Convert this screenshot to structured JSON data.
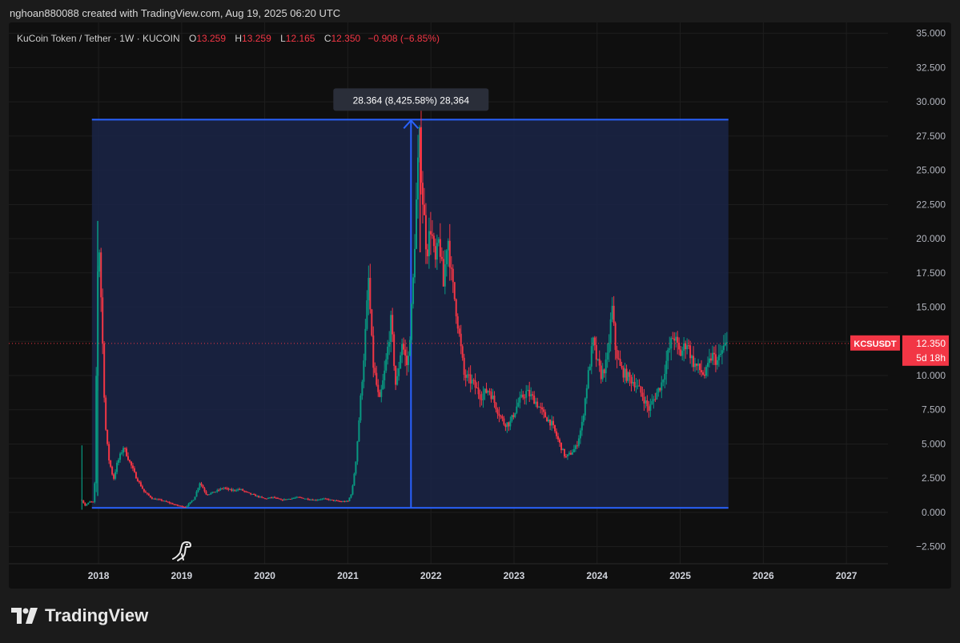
{
  "header": {
    "caption": "nghoan880088 created with TradingView.com, Aug 19, 2025 06:20 UTC"
  },
  "legend": {
    "symbol": "KuCoin Token / Tether · 1W · KUCOIN",
    "open_label": "O",
    "open": "13.259",
    "high_label": "H",
    "high": "13.259",
    "low_label": "L",
    "low": "12.165",
    "close_label": "C",
    "close": "12.350",
    "change": "−0.908 (−6.85%)"
  },
  "measure": {
    "label": "28.364 (8,425.58%) 28,364"
  },
  "price_tag": {
    "symbol": "KCSUSDT",
    "price": "12.350",
    "countdown": "5d 18h"
  },
  "brand": {
    "name": "TradingView",
    "logo_icon": "tradingview-logo-icon",
    "dino_icon": "dino-icon"
  },
  "colors": {
    "up": "#089981",
    "down": "#f23645",
    "measure": "#2962ff",
    "measure_fill": "#1a2447"
  },
  "chart_data": {
    "type": "candlestick",
    "symbol": "KCSUSDT",
    "interval": "1W",
    "ylim": [
      -3.75,
      35.8
    ],
    "y_ticks": [
      "35.000",
      "32.500",
      "30.000",
      "27.500",
      "25.000",
      "22.500",
      "20.000",
      "17.500",
      "15.000",
      "12.500",
      "10.000",
      "7.500",
      "5.000",
      "2.500",
      "0.000",
      "−2.500"
    ],
    "y_tick_values": [
      35,
      32.5,
      30,
      27.5,
      25,
      22.5,
      20,
      17.5,
      15,
      12.5,
      10,
      7.5,
      5,
      2.5,
      0,
      -2.5
    ],
    "x_ticks": [
      "2018",
      "2019",
      "2020",
      "2021",
      "2022",
      "2023",
      "2024",
      "2025",
      "2026",
      "2027"
    ],
    "x_tick_values": [
      2018,
      2019,
      2020,
      2021,
      2022,
      2023,
      2024,
      2025,
      2026,
      2027
    ],
    "xlim": [
      2016.92,
      2027.5
    ],
    "last_price": 12.35,
    "measure": {
      "x_start": 2017.92,
      "x_end": 2025.58,
      "x_arrow": 2021.76,
      "y_low": 0.33,
      "y_high": 28.7
    },
    "price_path": [
      [
        2017.8,
        0.9
      ],
      [
        2017.84,
        0.5
      ],
      [
        2017.9,
        0.8
      ],
      [
        2017.95,
        0.7
      ],
      [
        2018.0,
        21.2
      ],
      [
        2018.04,
        14.0
      ],
      [
        2018.08,
        6.5
      ],
      [
        2018.12,
        4.0
      ],
      [
        2018.18,
        2.4
      ],
      [
        2018.22,
        3.5
      ],
      [
        2018.3,
        4.8
      ],
      [
        2018.38,
        3.6
      ],
      [
        2018.45,
        2.6
      ],
      [
        2018.55,
        1.5
      ],
      [
        2018.65,
        1.0
      ],
      [
        2018.75,
        0.9
      ],
      [
        2018.85,
        0.7
      ],
      [
        2018.95,
        0.5
      ],
      [
        2019.05,
        0.4
      ],
      [
        2019.15,
        1.0
      ],
      [
        2019.22,
        2.2
      ],
      [
        2019.3,
        1.3
      ],
      [
        2019.4,
        1.5
      ],
      [
        2019.5,
        1.8
      ],
      [
        2019.6,
        1.6
      ],
      [
        2019.7,
        1.7
      ],
      [
        2019.8,
        1.4
      ],
      [
        2019.9,
        1.2
      ],
      [
        2020.0,
        1.0
      ],
      [
        2020.1,
        1.1
      ],
      [
        2020.2,
        0.9
      ],
      [
        2020.3,
        1.0
      ],
      [
        2020.4,
        1.1
      ],
      [
        2020.5,
        1.0
      ],
      [
        2020.6,
        0.9
      ],
      [
        2020.7,
        1.0
      ],
      [
        2020.8,
        0.9
      ],
      [
        2020.9,
        0.8
      ],
      [
        2021.0,
        0.8
      ],
      [
        2021.05,
        1.5
      ],
      [
        2021.1,
        4.0
      ],
      [
        2021.15,
        8.0
      ],
      [
        2021.2,
        12.0
      ],
      [
        2021.25,
        17.0
      ],
      [
        2021.3,
        11.0
      ],
      [
        2021.38,
        8.0
      ],
      [
        2021.45,
        10.5
      ],
      [
        2021.52,
        14.0
      ],
      [
        2021.58,
        9.0
      ],
      [
        2021.65,
        12.5
      ],
      [
        2021.72,
        10.5
      ],
      [
        2021.78,
        16.0
      ],
      [
        2021.82,
        22.0
      ],
      [
        2021.86,
        27.5
      ],
      [
        2021.9,
        23.0
      ],
      [
        2021.95,
        19.0
      ],
      [
        2022.0,
        21.0
      ],
      [
        2022.05,
        18.0
      ],
      [
        2022.1,
        20.0
      ],
      [
        2022.15,
        16.5
      ],
      [
        2022.2,
        20.5
      ],
      [
        2022.25,
        17.0
      ],
      [
        2022.3,
        15.0
      ],
      [
        2022.35,
        12.5
      ],
      [
        2022.4,
        10.0
      ],
      [
        2022.5,
        9.5
      ],
      [
        2022.6,
        8.5
      ],
      [
        2022.7,
        9.0
      ],
      [
        2022.8,
        7.5
      ],
      [
        2022.88,
        6.5
      ],
      [
        2022.95,
        6.5
      ],
      [
        2023.05,
        8.0
      ],
      [
        2023.15,
        8.8
      ],
      [
        2023.25,
        8.2
      ],
      [
        2023.35,
        7.2
      ],
      [
        2023.45,
        6.5
      ],
      [
        2023.55,
        5.0
      ],
      [
        2023.62,
        4.0
      ],
      [
        2023.68,
        4.3
      ],
      [
        2023.75,
        4.8
      ],
      [
        2023.82,
        6.5
      ],
      [
        2023.88,
        9.5
      ],
      [
        2023.95,
        12.5
      ],
      [
        2024.0,
        11.0
      ],
      [
        2024.05,
        10.0
      ],
      [
        2024.12,
        11.0
      ],
      [
        2024.18,
        15.0
      ],
      [
        2024.22,
        12.0
      ],
      [
        2024.28,
        10.5
      ],
      [
        2024.35,
        10.0
      ],
      [
        2024.45,
        9.5
      ],
      [
        2024.55,
        8.5
      ],
      [
        2024.62,
        7.5
      ],
      [
        2024.7,
        8.5
      ],
      [
        2024.78,
        9.5
      ],
      [
        2024.85,
        11.5
      ],
      [
        2024.92,
        13.0
      ],
      [
        2025.0,
        11.5
      ],
      [
        2025.08,
        12.5
      ],
      [
        2025.15,
        11.0
      ],
      [
        2025.22,
        10.5
      ],
      [
        2025.3,
        10.0
      ],
      [
        2025.38,
        11.5
      ],
      [
        2025.45,
        11.0
      ],
      [
        2025.52,
        12.0
      ],
      [
        2025.58,
        12.35
      ]
    ]
  }
}
